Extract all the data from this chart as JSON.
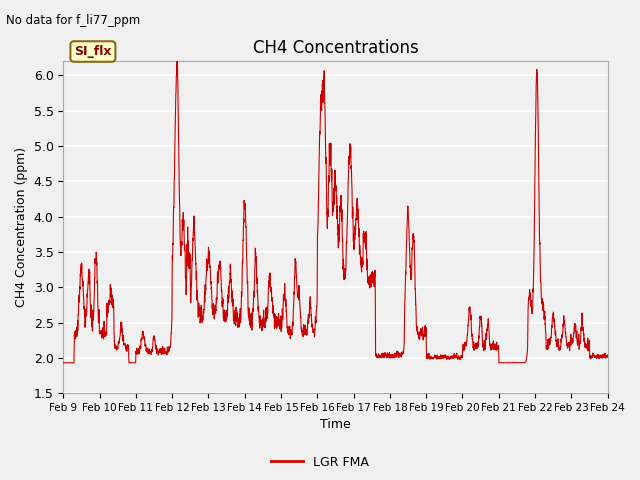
{
  "title": "CH4 Concentrations",
  "subtitle": "No data for f_li77_ppm",
  "xlabel": "Time",
  "ylabel": "CH4 Concentration (ppm)",
  "ylim": [
    1.5,
    6.2
  ],
  "yticks": [
    1.5,
    2.0,
    2.5,
    3.0,
    3.5,
    4.0,
    4.5,
    5.0,
    5.5,
    6.0
  ],
  "line_color": "#cc0000",
  "line_width": 0.8,
  "legend_label": "LGR FMA",
  "legend_line_color": "#cc0000",
  "annotation_text": "SI_flx",
  "bg_color": "#f0f0f0",
  "plot_bg_color": "#f0f0f0",
  "grid_color": "#ffffff",
  "x_tick_labels": [
    "Feb 9",
    "Feb 10",
    "Feb 11",
    "Feb 12",
    "Feb 13",
    "Feb 14",
    "Feb 15",
    "Feb 16",
    "Feb 17",
    "Feb 18",
    "Feb 19",
    "Feb 20",
    "Feb 21",
    "Feb 22",
    "Feb 23",
    "Feb 24"
  ],
  "base_level": 1.93,
  "seed": 42
}
